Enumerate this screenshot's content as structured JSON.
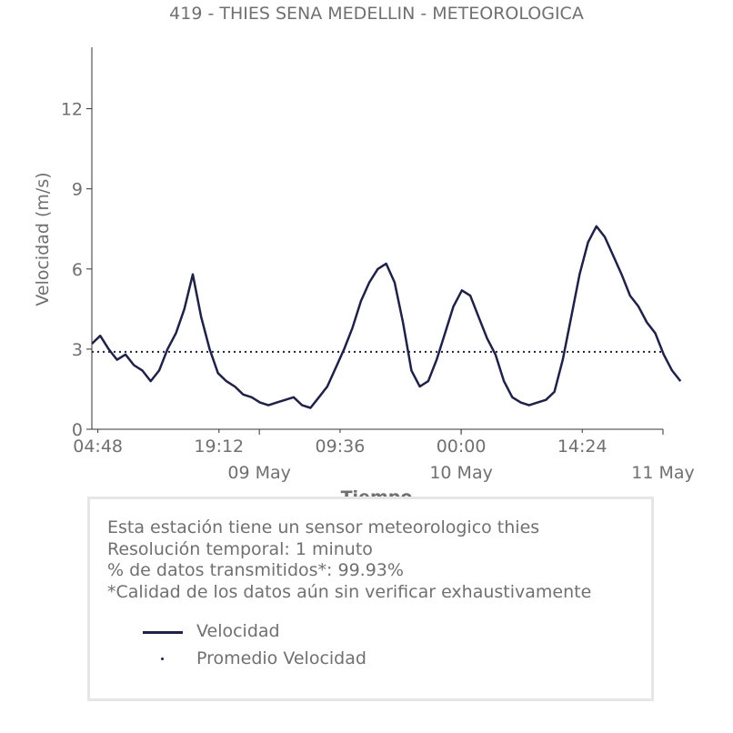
{
  "chart_data": {
    "type": "line",
    "title": "419 - THIES SENA MEDELLIN - METEOROLOGICA",
    "xlabel": "Tiempo",
    "ylabel": "Velocidad (m/s)",
    "ylim": [
      0,
      14.3
    ],
    "xlim": [
      "2024-05-08T04:05",
      "2024-05-11T00:00"
    ],
    "yticks": [
      0,
      3,
      6,
      9,
      12
    ],
    "xticks_time": [
      {
        "t": "2024-05-08T04:48",
        "label": "04:48"
      },
      {
        "t": "2024-05-08T19:12",
        "label": "19:12"
      },
      {
        "t": "2024-05-09T09:36",
        "label": "09:36"
      },
      {
        "t": "2024-05-10T00:00",
        "label": "00:00"
      },
      {
        "t": "2024-05-10T14:24",
        "label": "14:24"
      }
    ],
    "xticks_date": [
      {
        "t": "2024-05-09T00:00",
        "label": "09 May"
      },
      {
        "t": "2024-05-10T00:00",
        "label": "10 May"
      },
      {
        "t": "2024-05-11T00:00",
        "label": "11 May"
      }
    ],
    "grid": false,
    "series": [
      {
        "name": "Velocidad",
        "color": "#1f2147",
        "t_start": "2024-05-08T04:05",
        "step_minutes": 60,
        "values": [
          3.2,
          3.5,
          3.0,
          2.6,
          2.8,
          2.4,
          2.2,
          1.8,
          2.2,
          3.0,
          3.6,
          4.5,
          5.8,
          4.2,
          3.0,
          2.1,
          1.8,
          1.6,
          1.3,
          1.2,
          1.0,
          0.9,
          1.0,
          1.1,
          1.2,
          0.9,
          0.8,
          1.2,
          1.6,
          2.3,
          3.0,
          3.8,
          4.8,
          5.5,
          6.0,
          6.2,
          5.5,
          4.0,
          2.2,
          1.6,
          1.8,
          2.6,
          3.6,
          4.6,
          5.2,
          5.0,
          4.2,
          3.4,
          2.8,
          1.8,
          1.2,
          1.0,
          0.9,
          1.0,
          1.1,
          1.4,
          2.6,
          4.2,
          5.8,
          7.0,
          7.6,
          7.2,
          6.5,
          5.8,
          5.0,
          4.6,
          4.0,
          3.6,
          2.8,
          2.2,
          1.8
        ]
      },
      {
        "name": "Promedio Velocidad",
        "color": "#1f2147",
        "values": [
          2.9
        ]
      }
    ],
    "legend_position": "bottom",
    "annotation": "Esta estación tiene un sensor meteorologico thies\nResolución temporal: 1 minuto\n% de datos transmitidos*: 99.93%\n*Calidad de los datos aún sin verificar exhaustivamente"
  },
  "info": {
    "line1": "Esta estación tiene un sensor meteorologico thies",
    "line2": "Resolución temporal: 1 minuto",
    "line3": "% de datos transmitidos*: 99.93%",
    "line4": "*Calidad de los datos aún sin verificar exhaustivamente"
  },
  "legend": {
    "items": [
      {
        "label": "Velocidad",
        "style": "line",
        "color": "#1f2147"
      },
      {
        "label": "Promedio Velocidad",
        "style": "dot",
        "color": "#1f2147"
      }
    ]
  }
}
